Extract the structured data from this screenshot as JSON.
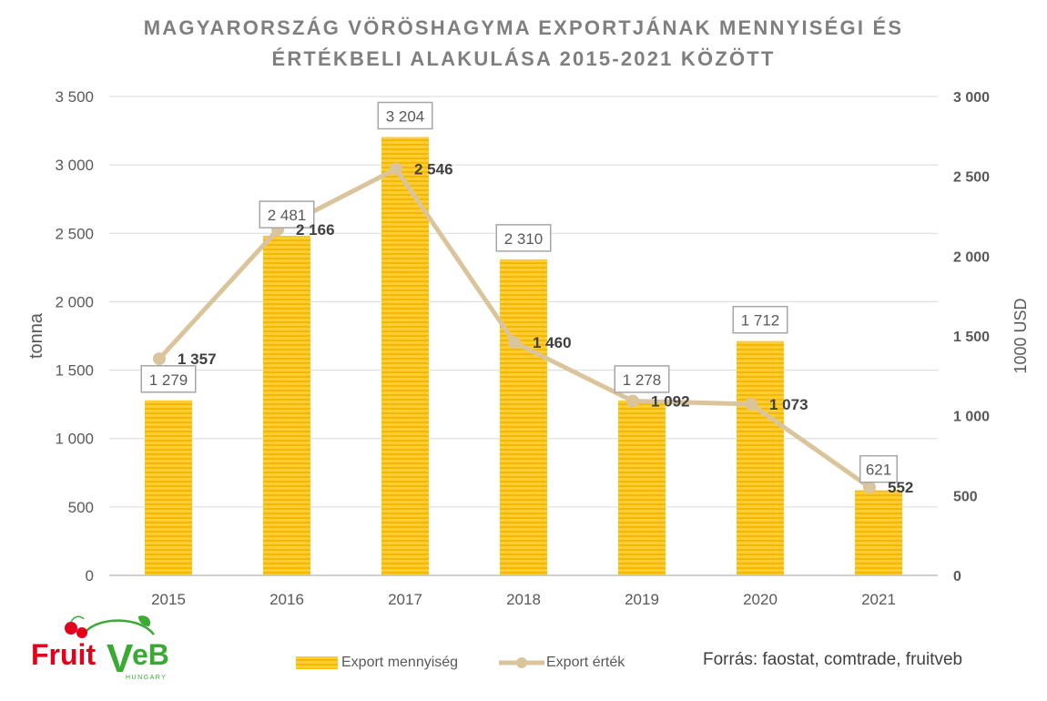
{
  "title_line1": "MAGYARORSZÁG VÖRÖSHAGYMA EXPORTJÁNAK MENNYISÉGI ÉS",
  "title_line2": "ÉRTÉKBELI ALAKULÁSA 2015-2021 KÖZÖTT",
  "source": "Forrás: faostat, comtrade, fruitveb",
  "logo": {
    "text_main": "Fruit",
    "text_v": "V",
    "text_eb": "eB",
    "text_sub": "HUNGARY"
  },
  "colors": {
    "bar": "#ffcc33",
    "bar_stripe": "#f5b800",
    "line": "#d9c49b",
    "grid": "#d9d9d9",
    "axis_text": "#595959",
    "label_box": "#a6a6a6",
    "logo_red": "#e3001b",
    "logo_green": "#3aaa35"
  },
  "chart_data": {
    "type": "bar",
    "categories": [
      "2015",
      "2016",
      "2017",
      "2018",
      "2019",
      "2020",
      "2021"
    ],
    "series": [
      {
        "name": "Export mennyiség",
        "type": "bar",
        "axis": "left",
        "values": [
          1279,
          2481,
          3204,
          2310,
          1278,
          1712,
          621
        ],
        "labels": [
          "1 279",
          "2 481",
          "3 204",
          "2 310",
          "1 278",
          "1 712",
          "621"
        ]
      },
      {
        "name": "Export érték",
        "type": "line",
        "axis": "right",
        "values": [
          1357,
          2166,
          2546,
          1460,
          1092,
          1073,
          552
        ],
        "labels": [
          "1 357",
          "2 166",
          "2 546",
          "1 460",
          "1 092",
          "1 073",
          "552"
        ]
      }
    ],
    "ylabel": "tonna",
    "y2label": "1000 USD",
    "ylim": [
      0,
      3500
    ],
    "y2lim": [
      0,
      3000
    ],
    "yticks": [
      0,
      500,
      1000,
      1500,
      2000,
      2500,
      3000,
      3500
    ],
    "ytick_labels": [
      "0",
      "500",
      "1 000",
      "1 500",
      "2 000",
      "2 500",
      "3 000",
      "3 500"
    ],
    "y2ticks": [
      0,
      500,
      1000,
      1500,
      2000,
      2500,
      3000
    ],
    "y2tick_labels": [
      "0",
      "500",
      "1 000",
      "1 500",
      "2 000",
      "2 500",
      "3 000"
    ],
    "grid": true,
    "legend": "bottom"
  }
}
